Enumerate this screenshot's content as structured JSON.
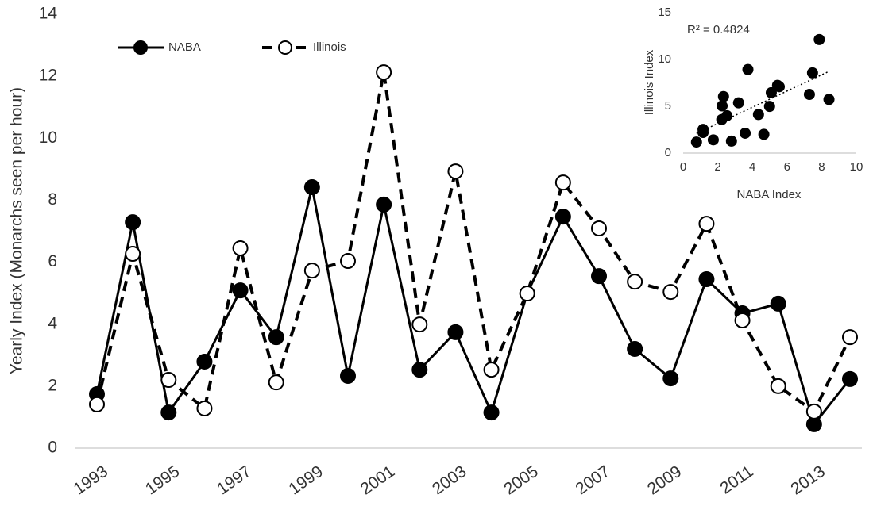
{
  "chart_data": [
    {
      "type": "line",
      "y_label": "Yearly Index (Monarchs seen per hour)",
      "categories": [
        "1993",
        null,
        "1995",
        null,
        "1997",
        null,
        "1999",
        null,
        "2001",
        null,
        "2003",
        null,
        "2005",
        null,
        "2007",
        null,
        "2009",
        null,
        "2011",
        null,
        "2013",
        null
      ],
      "series": [
        {
          "name": "NABA",
          "color": "#000000",
          "line_style": "solid",
          "marker": "filled",
          "values": [
            1.74,
            7.29,
            1.15,
            2.79,
            5.09,
            3.58,
            8.42,
            2.33,
            7.86,
            2.53,
            3.74,
            1.15,
            4.99,
            7.47,
            5.55,
            3.2,
            2.25,
            5.45,
            4.35,
            4.66,
            0.77,
            2.23
          ]
        },
        {
          "name": "Illinois",
          "color": "#000000",
          "line_style": "dashed",
          "marker": "open",
          "values": [
            1.41,
            6.27,
            2.2,
            1.28,
            6.45,
            2.12,
            5.73,
            6.04,
            12.13,
            3.99,
            8.93,
            2.53,
            4.99,
            8.57,
            7.09,
            5.37,
            5.04,
            7.24,
            4.12,
            2.0,
            1.18,
            3.58
          ]
        }
      ],
      "ylim": [
        0,
        14
      ],
      "yticks": [
        0,
        2,
        4,
        6,
        8,
        10,
        12,
        14
      ],
      "legend": "top-left"
    },
    {
      "type": "scatter",
      "x_label": "NABA Index",
      "y_label": "Illinois Index",
      "annotation": "R² = 0.4824",
      "trendline": true,
      "color": "#000000",
      "x": [
        1.74,
        7.29,
        1.15,
        2.79,
        5.09,
        3.58,
        8.42,
        2.33,
        7.86,
        2.53,
        3.74,
        1.15,
        4.99,
        7.47,
        5.55,
        3.2,
        2.25,
        5.45,
        4.35,
        4.66,
        0.77,
        2.23
      ],
      "values": [
        1.41,
        6.27,
        2.2,
        1.28,
        6.45,
        2.12,
        5.73,
        6.04,
        12.13,
        3.99,
        8.93,
        2.53,
        4.99,
        8.57,
        7.09,
        5.37,
        5.04,
        7.24,
        4.12,
        2.0,
        1.18,
        3.58
      ],
      "xlim": [
        0,
        10
      ],
      "xticks": [
        0,
        2,
        4,
        6,
        8,
        10
      ],
      "ylim": [
        0,
        15
      ],
      "yticks": [
        0,
        5,
        10,
        15
      ]
    }
  ]
}
